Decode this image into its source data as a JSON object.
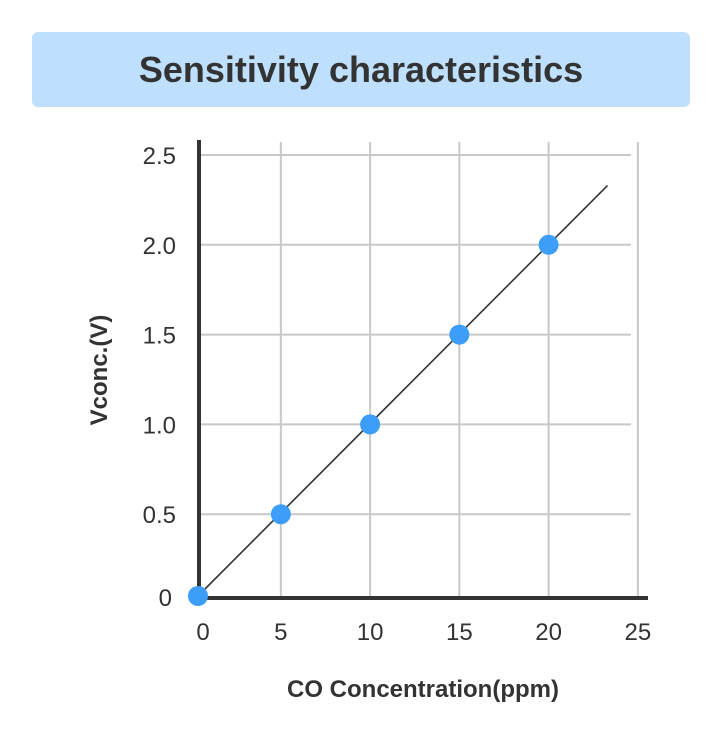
{
  "chart_data": {
    "type": "scatter",
    "title": "Sensitivity characteristics",
    "xlabel": "CO Concentration(ppm)",
    "ylabel": "Vconc.(V)",
    "xlim": [
      0,
      25
    ],
    "ylim": [
      0,
      2.5
    ],
    "grid": true,
    "x_ticks": [
      "0",
      "5",
      "10",
      "15",
      "20",
      "25"
    ],
    "y_ticks": [
      "0",
      "0.5",
      "1.0",
      "1.5",
      "2.0",
      "2.5"
    ],
    "x": [
      0,
      5,
      10,
      15,
      20
    ],
    "y": [
      0,
      0.5,
      1.0,
      1.5,
      2.0
    ],
    "fit_line": {
      "x": [
        0,
        23.3
      ],
      "y": [
        0,
        2.33
      ]
    },
    "point_color": "#3d9ef9",
    "title_bg": "#bfe0fd"
  }
}
